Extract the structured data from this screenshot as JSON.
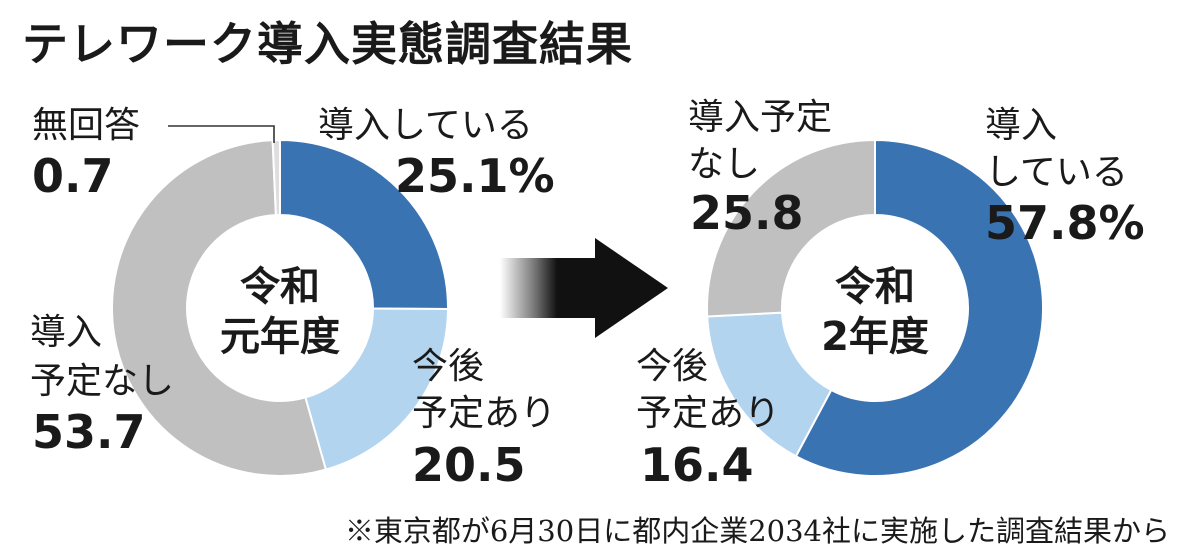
{
  "title": "テレワーク導入実態調査結果",
  "footnote": "※東京都が6月30日に都内企業2034社に実施した調査結果から",
  "colors": {
    "introduced": "#3a73b2",
    "planned": "#b3d4ef",
    "not_planned": "#c0c0c0",
    "no_answer": "#dedede",
    "arrow": "#111111"
  },
  "chart_data": [
    {
      "type": "pie",
      "center_label": [
        "令和",
        "元年度"
      ],
      "unit": "%",
      "slices": [
        {
          "label": "導入している",
          "value": 25.1,
          "color": "#3a73b2"
        },
        {
          "label": "今後予定あり",
          "value": 20.5,
          "color": "#b3d4ef"
        },
        {
          "label": "導入予定なし",
          "value": 53.7,
          "color": "#c0c0c0"
        },
        {
          "label": "無回答",
          "value": 0.7,
          "color": "#dedede"
        }
      ]
    },
    {
      "type": "pie",
      "center_label": [
        "令和",
        "2年度"
      ],
      "unit": "%",
      "slices": [
        {
          "label": "導入している",
          "value": 57.8,
          "color": "#3a73b2"
        },
        {
          "label": "今後予定あり",
          "value": 16.4,
          "color": "#b3d4ef"
        },
        {
          "label": "導入予定なし",
          "value": 25.8,
          "color": "#c0c0c0"
        }
      ]
    }
  ],
  "labels": {
    "c1": {
      "introduced_name": "導入している",
      "introduced_value": "25.1%",
      "planned_line1": "今後",
      "planned_line2": "予定あり",
      "planned_value": "20.5",
      "notplanned_line1": "導入",
      "notplanned_line2": "予定なし",
      "notplanned_value": "53.7",
      "noanswer_name": "無回答",
      "noanswer_value": "0.7",
      "center_line1": "令和",
      "center_line2": "元年度"
    },
    "c2": {
      "introduced_line1": "導入",
      "introduced_line2": "している",
      "introduced_value": "57.8%",
      "planned_line1": "今後",
      "planned_line2": "予定あり",
      "planned_value": "16.4",
      "notplanned_line1": "導入予定",
      "notplanned_line2": "なし",
      "notplanned_value": "25.8",
      "center_line1": "令和",
      "center_line2": "2年度"
    }
  }
}
